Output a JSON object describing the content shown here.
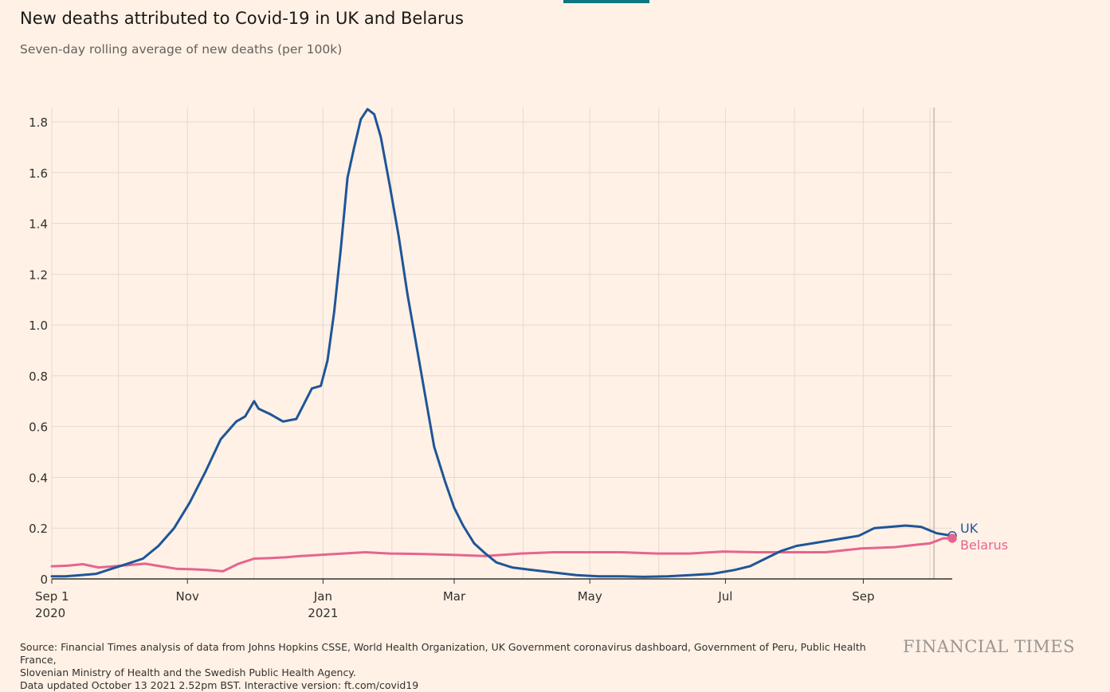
{
  "header": {
    "title": "New deaths attributed to Covid-19 in UK and Belarus",
    "subtitle": "Seven-day rolling average of new deaths (per 100k)"
  },
  "footer": {
    "source_line1": "Source: Financial Times analysis of data from Johns Hopkins CSSE, World Health Organization, UK Government coronavirus dashboard, Government of Peru, Public Health France,",
    "source_line2": "Slovenian Ministry of Health and the Swedish Public Health Agency.",
    "source_line3": "Data updated October 13 2021 2.52pm BST. Interactive version: ft.com/covid19",
    "brand": "FINANCIAL TIMES"
  },
  "colors": {
    "background": "#fff1e5",
    "uk": "#1f5597",
    "belarus": "#e6648f",
    "grid": "#e6d9ce",
    "axis": "#33302e",
    "text": "#33302e"
  },
  "chart_data": {
    "type": "line",
    "title": "New deaths attributed to Covid-19 in UK and Belarus",
    "subtitle": "Seven-day rolling average of new deaths (per 100k)",
    "x_type": "date",
    "x_range": [
      "2020-09-01",
      "2021-10-11"
    ],
    "ylim": [
      0,
      1.8
    ],
    "y_ticks": [
      0,
      0.2,
      0.4,
      0.6,
      0.8,
      1.0,
      1.2,
      1.4,
      1.6,
      1.8
    ],
    "y_tick_labels": [
      "0",
      "0.2",
      "0.4",
      "0.6",
      "0.8",
      "1.0",
      "1.2",
      "1.4",
      "1.6",
      "1.8"
    ],
    "x_ticks": [
      {
        "date": "2020-09-01",
        "label": "Sep 1",
        "sublabel": "2020"
      },
      {
        "date": "2020-11-01",
        "label": "Nov",
        "sublabel": ""
      },
      {
        "date": "2021-01-01",
        "label": "Jan",
        "sublabel": "2021"
      },
      {
        "date": "2021-03-01",
        "label": "Mar",
        "sublabel": ""
      },
      {
        "date": "2021-05-01",
        "label": "May",
        "sublabel": ""
      },
      {
        "date": "2021-07-01",
        "label": "Jul",
        "sublabel": ""
      },
      {
        "date": "2021-09-01",
        "label": "Sep",
        "sublabel": ""
      }
    ],
    "x_minor_gridlines": [
      "2020-10-01",
      "2020-12-01",
      "2021-02-01",
      "2021-04-01",
      "2021-06-01",
      "2021-08-01",
      "2021-10-01"
    ],
    "grid": true,
    "legend": "direct labels at line ends (right)",
    "series": [
      {
        "name": "UK",
        "color": "#1f5597",
        "points": [
          [
            "2020-09-01",
            0.01
          ],
          [
            "2020-09-07",
            0.01
          ],
          [
            "2020-09-14",
            0.015
          ],
          [
            "2020-09-21",
            0.02
          ],
          [
            "2020-09-28",
            0.04
          ],
          [
            "2020-10-05",
            0.06
          ],
          [
            "2020-10-12",
            0.08
          ],
          [
            "2020-10-19",
            0.13
          ],
          [
            "2020-10-26",
            0.2
          ],
          [
            "2020-11-02",
            0.3
          ],
          [
            "2020-11-09",
            0.42
          ],
          [
            "2020-11-16",
            0.55
          ],
          [
            "2020-11-23",
            0.62
          ],
          [
            "2020-11-27",
            0.64
          ],
          [
            "2020-12-01",
            0.7
          ],
          [
            "2020-12-03",
            0.67
          ],
          [
            "2020-12-08",
            0.65
          ],
          [
            "2020-12-14",
            0.62
          ],
          [
            "2020-12-20",
            0.63
          ],
          [
            "2020-12-27",
            0.75
          ],
          [
            "2020-12-31",
            0.76
          ],
          [
            "2021-01-03",
            0.86
          ],
          [
            "2021-01-06",
            1.05
          ],
          [
            "2021-01-09",
            1.3
          ],
          [
            "2021-01-12",
            1.58
          ],
          [
            "2021-01-15",
            1.7
          ],
          [
            "2021-01-18",
            1.81
          ],
          [
            "2021-01-21",
            1.85
          ],
          [
            "2021-01-24",
            1.83
          ],
          [
            "2021-01-27",
            1.74
          ],
          [
            "2021-01-31",
            1.55
          ],
          [
            "2021-02-04",
            1.35
          ],
          [
            "2021-02-08",
            1.12
          ],
          [
            "2021-02-12",
            0.92
          ],
          [
            "2021-02-16",
            0.72
          ],
          [
            "2021-02-20",
            0.52
          ],
          [
            "2021-02-25",
            0.38
          ],
          [
            "2021-03-01",
            0.28
          ],
          [
            "2021-03-05",
            0.21
          ],
          [
            "2021-03-10",
            0.14
          ],
          [
            "2021-03-15",
            0.1
          ],
          [
            "2021-03-20",
            0.065
          ],
          [
            "2021-03-27",
            0.045
          ],
          [
            "2021-04-05",
            0.035
          ],
          [
            "2021-04-15",
            0.025
          ],
          [
            "2021-04-25",
            0.015
          ],
          [
            "2021-05-05",
            0.01
          ],
          [
            "2021-05-15",
            0.01
          ],
          [
            "2021-05-25",
            0.008
          ],
          [
            "2021-06-05",
            0.01
          ],
          [
            "2021-06-15",
            0.015
          ],
          [
            "2021-06-25",
            0.02
          ],
          [
            "2021-07-05",
            0.035
          ],
          [
            "2021-07-12",
            0.05
          ],
          [
            "2021-07-19",
            0.08
          ],
          [
            "2021-07-26",
            0.11
          ],
          [
            "2021-08-02",
            0.13
          ],
          [
            "2021-08-09",
            0.14
          ],
          [
            "2021-08-16",
            0.15
          ],
          [
            "2021-08-23",
            0.16
          ],
          [
            "2021-08-30",
            0.17
          ],
          [
            "2021-09-06",
            0.2
          ],
          [
            "2021-09-13",
            0.205
          ],
          [
            "2021-09-20",
            0.21
          ],
          [
            "2021-09-27",
            0.205
          ],
          [
            "2021-10-04",
            0.18
          ],
          [
            "2021-10-11",
            0.17
          ]
        ]
      },
      {
        "name": "Belarus",
        "color": "#e6648f",
        "points": [
          [
            "2020-09-01",
            0.05
          ],
          [
            "2020-09-08",
            0.052
          ],
          [
            "2020-09-15",
            0.058
          ],
          [
            "2020-09-22",
            0.045
          ],
          [
            "2020-09-29",
            0.05
          ],
          [
            "2020-10-06",
            0.055
          ],
          [
            "2020-10-13",
            0.06
          ],
          [
            "2020-10-20",
            0.05
          ],
          [
            "2020-10-27",
            0.04
          ],
          [
            "2020-11-03",
            0.038
          ],
          [
            "2020-11-10",
            0.035
          ],
          [
            "2020-11-17",
            0.03
          ],
          [
            "2020-11-24",
            0.06
          ],
          [
            "2020-12-01",
            0.08
          ],
          [
            "2020-12-08",
            0.082
          ],
          [
            "2020-12-15",
            0.085
          ],
          [
            "2020-12-22",
            0.09
          ],
          [
            "2020-12-31",
            0.095
          ],
          [
            "2021-01-10",
            0.1
          ],
          [
            "2021-01-20",
            0.105
          ],
          [
            "2021-01-31",
            0.1
          ],
          [
            "2021-02-15",
            0.098
          ],
          [
            "2021-02-28",
            0.095
          ],
          [
            "2021-03-15",
            0.09
          ],
          [
            "2021-03-31",
            0.1
          ],
          [
            "2021-04-15",
            0.105
          ],
          [
            "2021-04-30",
            0.105
          ],
          [
            "2021-05-15",
            0.105
          ],
          [
            "2021-05-31",
            0.1
          ],
          [
            "2021-06-15",
            0.1
          ],
          [
            "2021-06-30",
            0.108
          ],
          [
            "2021-07-15",
            0.105
          ],
          [
            "2021-07-31",
            0.105
          ],
          [
            "2021-08-15",
            0.105
          ],
          [
            "2021-08-31",
            0.12
          ],
          [
            "2021-09-15",
            0.125
          ],
          [
            "2021-09-25",
            0.135
          ],
          [
            "2021-10-01",
            0.14
          ],
          [
            "2021-10-04",
            0.15
          ],
          [
            "2021-10-07",
            0.16
          ],
          [
            "2021-10-11",
            0.16
          ]
        ]
      }
    ]
  }
}
